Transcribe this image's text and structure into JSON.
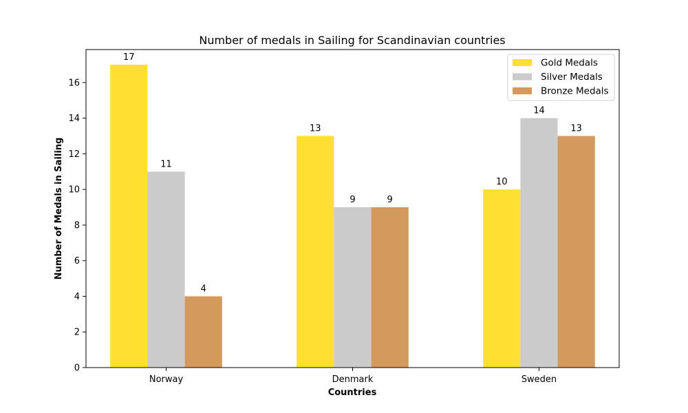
{
  "chart_data": {
    "type": "bar",
    "title": "Number of medals in Sailing for Scandinavian countries",
    "xlabel": "Countries",
    "ylabel": "Number of Medals in Sailing",
    "categories": [
      "Norway",
      "Denmark",
      "Sweden"
    ],
    "series": [
      {
        "name": "Gold Medals",
        "values": [
          17,
          13,
          10
        ],
        "color": "#ffdf32"
      },
      {
        "name": "Silver Medals",
        "values": [
          11,
          9,
          14
        ],
        "color": "#cbcbcb"
      },
      {
        "name": "Bronze Medals",
        "values": [
          4,
          9,
          13
        ],
        "color": "#d5995d"
      }
    ],
    "ylim": [
      0,
      17.85
    ],
    "yticks": [
      0,
      2,
      4,
      6,
      8,
      10,
      12,
      14,
      16
    ],
    "grid": false,
    "legend_position": "top-right"
  }
}
